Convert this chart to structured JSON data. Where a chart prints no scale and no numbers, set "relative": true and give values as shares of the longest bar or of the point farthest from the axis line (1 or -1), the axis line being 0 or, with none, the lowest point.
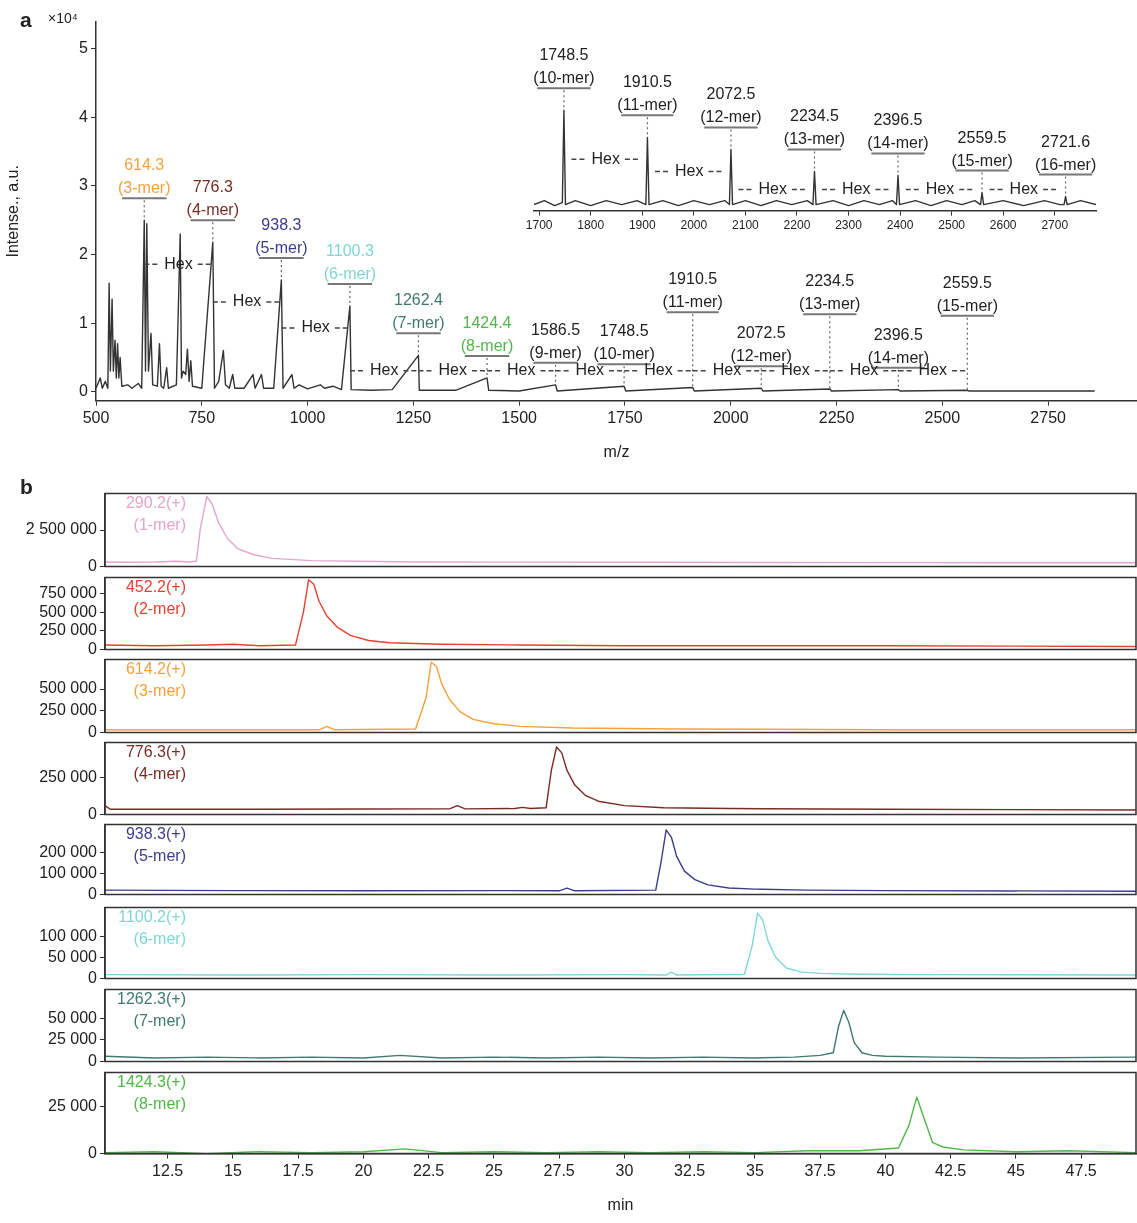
{
  "chart_data": [
    {
      "type": "line",
      "xlabel": "m/z",
      "ylabel": "Intense., a.u.",
      "xlim": [
        500,
        2960
      ],
      "ylim": [
        -0.13,
        5.39
      ],
      "xticks": [
        500,
        750,
        1000,
        1250,
        1500,
        1750,
        2000,
        2250,
        2500,
        2750
      ],
      "yticks": [
        0,
        1,
        2,
        3,
        4,
        5
      ],
      "grid": false,
      "legend": false,
      "marker": "none",
      "series": [
        {
          "color": "#333333",
          "x": [
            500,
            510,
            515,
            522,
            528,
            531,
            534,
            538,
            541,
            545,
            548,
            551,
            554,
            557,
            561,
            575,
            585,
            600,
            608,
            614,
            617,
            620,
            624,
            630,
            634,
            645,
            650,
            654,
            660,
            667,
            671,
            690,
            699,
            702,
            706,
            712,
            716,
            720,
            724,
            728,
            750,
            776,
            780,
            790,
            801,
            806,
            815,
            823,
            828,
            850,
            871,
            876,
            891,
            896,
            920,
            938,
            942,
            963,
            968,
            980,
            1000,
            1030,
            1040,
            1060,
            1080,
            1100,
            1103,
            1150,
            1200,
            1262,
            1264,
            1350,
            1424,
            1428,
            1500,
            1586,
            1590,
            1748,
            1752,
            1910,
            1914,
            2072,
            2076,
            2234,
            2238,
            2396,
            2400,
            2559,
            2563,
            2860
          ],
          "values": [
            0.05,
            0.2,
            0.05,
            0.15,
            0.05,
            1.58,
            0.3,
            1.35,
            0.3,
            0.75,
            0.2,
            0.7,
            0.2,
            0.5,
            0.08,
            0.1,
            0.05,
            0.12,
            0.05,
            2.5,
            0.3,
            2.45,
            0.3,
            0.85,
            0.1,
            0.08,
            0.7,
            0.08,
            0.05,
            0.35,
            0.05,
            0.1,
            2.3,
            0.2,
            0.3,
            0.25,
            0.62,
            0.15,
            0.45,
            0.08,
            0.05,
            2.18,
            0.05,
            0.15,
            0.6,
            0.1,
            0.05,
            0.25,
            0.05,
            0.05,
            0.25,
            0.05,
            0.25,
            0.05,
            0.05,
            1.63,
            0.05,
            0.25,
            0.05,
            0.1,
            0.04,
            0.1,
            0.05,
            0.08,
            0.03,
            1.25,
            0.03,
            0.02,
            0.03,
            0.53,
            0.02,
            0.02,
            0.2,
            0.02,
            0.01,
            0.1,
            0.01,
            0.08,
            0.01,
            0.06,
            0.01,
            0.05,
            0.01,
            0.04,
            0.01,
            0.03,
            0.01,
            0.02,
            0.01,
            0.01
          ]
        }
      ],
      "annotations": [
        "a",
        "×10⁴",
        {
          "text": "614.3\n(3-mer)",
          "x": 614,
          "y": 2.5
        },
        {
          "text": "776.3\n(4-mer)",
          "x": 776,
          "y": 2.18
        },
        {
          "text": "938.3\n(5-mer)",
          "x": 938,
          "y": 1.63
        },
        {
          "text": "1100.3\n(6-mer)",
          "x": 1100,
          "y": 1.25
        },
        {
          "text": "1262.4\n(7-mer)",
          "x": 1262,
          "y": 0.53
        },
        {
          "text": "1424.4\n(8-mer)",
          "x": 1424,
          "y": 0.2
        },
        {
          "text": "1586.5\n(9-mer)",
          "x": 1586,
          "y": 0.1
        },
        {
          "text": "1748.5\n(10-mer)",
          "x": 1748,
          "y": 0.08
        },
        {
          "text": "1910.5\n(11-mer)",
          "x": 1910,
          "y": 0.06
        },
        {
          "text": "2072.5\n(12-mer)",
          "x": 2072,
          "y": 0.05
        },
        {
          "text": "2234.5\n(13-mer)",
          "x": 2234,
          "y": 0.04
        },
        {
          "text": "2396.5\n(14-mer)",
          "x": 2396,
          "y": 0.03
        },
        {
          "text": "2559.5\n(15-mer)",
          "x": 2559,
          "y": 0.02
        },
        "Hex",
        "Hex",
        "Hex",
        "Hex",
        "Hex",
        "Hex",
        "Hex",
        "Hex",
        "Hex",
        "Hex",
        "Hex",
        "Hex"
      ]
    },
    {
      "type": "line",
      "relative": true,
      "xlim": [
        1690,
        2780
      ],
      "xticks": [
        1700,
        1800,
        1900,
        2000,
        2100,
        2200,
        2300,
        2400,
        2500,
        2600,
        2700
      ],
      "grid": false,
      "legend": false,
      "marker": "none",
      "series": [
        {
          "color": "#333333",
          "x": [
            1690,
            1710,
            1730,
            1745,
            1748,
            1751,
            1770,
            1800,
            1830,
            1860,
            1890,
            1907,
            1910,
            1913,
            1940,
            1970,
            2000,
            2030,
            2060,
            2069,
            2072,
            2075,
            2100,
            2130,
            2160,
            2190,
            2220,
            2231,
            2234,
            2237,
            2270,
            2300,
            2330,
            2360,
            2385,
            2393,
            2396,
            2399,
            2430,
            2460,
            2490,
            2520,
            2545,
            2556,
            2559,
            2562,
            2600,
            2640,
            2680,
            2710,
            2718,
            2721,
            2724,
            2750,
            2780
          ],
          "values": [
            0.06,
            0.1,
            0.05,
            0.08,
            1,
            0.06,
            0.1,
            0.05,
            0.1,
            0.06,
            0.1,
            0.06,
            0.73,
            0.06,
            0.1,
            0.05,
            0.1,
            0.06,
            0.1,
            0.06,
            0.61,
            0.06,
            0.1,
            0.05,
            0.1,
            0.06,
            0.1,
            0.06,
            0.39,
            0.06,
            0.1,
            0.05,
            0.1,
            0.06,
            0.1,
            0.06,
            0.35,
            0.06,
            0.1,
            0.05,
            0.1,
            0.06,
            0.1,
            0.06,
            0.18,
            0.06,
            0.1,
            0.05,
            0.1,
            0.06,
            0.06,
            0.14,
            0.06,
            0.1,
            0.06
          ]
        }
      ],
      "annotations": [
        {
          "text": "1748.5\n(10-mer)",
          "x": 1748,
          "y": 1
        },
        {
          "text": "1910.5\n(11-mer)",
          "x": 1910,
          "y": 0.73
        },
        {
          "text": "2072.5\n(12-mer)",
          "x": 2072,
          "y": 0.61
        },
        {
          "text": "2234.5\n(13-mer)",
          "x": 2234,
          "y": 0.39
        },
        {
          "text": "2396.5\n(14-mer)",
          "x": 2396,
          "y": 0.35
        },
        {
          "text": "2559.5\n(15-mer)",
          "x": 2559,
          "y": 0.18
        },
        {
          "text": "2721.6\n(16-mer)",
          "x": 2721,
          "y": 0.14
        },
        "Hex",
        "Hex",
        "Hex",
        "Hex",
        "Hex",
        "Hex"
      ]
    },
    {
      "type": "line",
      "xlim": [
        10.1,
        49.6
      ],
      "ylim": [
        0,
        5000000
      ],
      "xticks": [
        12.5,
        15,
        17.5,
        20,
        22.5,
        25,
        27.5,
        30,
        32.5,
        35,
        37.5,
        40,
        42.5,
        45,
        47.5
      ],
      "yticks": [
        0,
        {
          "value": 2500000,
          "label": "2 500 000"
        }
      ],
      "tick_labels": "y",
      "grid": false,
      "legend": false,
      "marker": "none",
      "annotations": [
        "b"
      ],
      "series": [
        {
          "name": "290.2(+)\n(1-mer)",
          "color": "#e6a3cf",
          "x": [
            10.1,
            11,
            12,
            12.8,
            13.3,
            13.6,
            13.75,
            14.0,
            14.2,
            14.45,
            14.8,
            15.2,
            15.8,
            16.5,
            18,
            22,
            30,
            40,
            49.6
          ],
          "values": [
            300000,
            280000,
            300000,
            350000,
            300000,
            350000,
            2600000,
            4800000,
            4300000,
            3000000,
            1900000,
            1200000,
            800000,
            550000,
            400000,
            300000,
            280000,
            260000,
            250000
          ]
        }
      ]
    },
    {
      "type": "line",
      "xlim": [
        10.1,
        49.6
      ],
      "ylim": [
        0,
        970000
      ],
      "xticks": [
        12.5,
        15,
        17.5,
        20,
        22.5,
        25,
        27.5,
        30,
        32.5,
        35,
        37.5,
        40,
        42.5,
        45,
        47.5
      ],
      "yticks": [
        0,
        {
          "value": 250000,
          "label": "250 000"
        },
        {
          "value": 500000,
          "label": "500 000"
        },
        {
          "value": 750000,
          "label": "750 000"
        }
      ],
      "tick_labels": "y",
      "grid": false,
      "legend": false,
      "marker": "none",
      "series": [
        {
          "name": "452.2(+)\n(2-mer)",
          "color": "#e8412f",
          "x": [
            10.1,
            12,
            14,
            15,
            16,
            17.4,
            17.7,
            17.9,
            18.1,
            18.3,
            18.6,
            19.0,
            19.5,
            20.2,
            21,
            23,
            26,
            30,
            40,
            49.6
          ],
          "values": [
            60000,
            50000,
            60000,
            70000,
            50000,
            60000,
            500000,
            940000,
            880000,
            650000,
            450000,
            300000,
            190000,
            120000,
            90000,
            70000,
            60000,
            50000,
            50000,
            40000
          ]
        }
      ]
    },
    {
      "type": "line",
      "xlim": [
        10.1,
        49.6
      ],
      "ylim": [
        0,
        840000
      ],
      "xticks": [
        12.5,
        15,
        17.5,
        20,
        22.5,
        25,
        27.5,
        30,
        32.5,
        35,
        37.5,
        40,
        42.5,
        45,
        47.5
      ],
      "yticks": [
        0,
        {
          "value": 250000,
          "label": "250 000"
        },
        {
          "value": 500000,
          "label": "500 000"
        }
      ],
      "tick_labels": "y",
      "grid": false,
      "legend": false,
      "marker": "none",
      "series": [
        {
          "name": "614.2(+)\n(3-mer)",
          "color": "#f7a03c",
          "x": [
            10.1,
            14,
            18.3,
            18.6,
            18.9,
            22,
            22.4,
            22.6,
            22.8,
            23.0,
            23.3,
            23.7,
            24.2,
            25,
            26,
            28,
            32,
            40,
            49.6
          ],
          "values": [
            30000,
            30000,
            30000,
            70000,
            30000,
            40000,
            400000,
            810000,
            760000,
            560000,
            380000,
            240000,
            150000,
            100000,
            70000,
            50000,
            40000,
            30000,
            30000
          ]
        }
      ]
    },
    {
      "type": "line",
      "xlim": [
        10.1,
        49.6
      ],
      "ylim": [
        0,
        490000
      ],
      "xticks": [
        12.5,
        15,
        17.5,
        20,
        22.5,
        25,
        27.5,
        30,
        32.5,
        35,
        37.5,
        40,
        42.5,
        45,
        47.5
      ],
      "yticks": [
        0,
        {
          "value": 250000,
          "label": "250 000"
        }
      ],
      "tick_labels": "y",
      "grid": false,
      "legend": false,
      "marker": "none",
      "series": [
        {
          "name": "776.3(+)\n(4-mer)",
          "color": "#7a2b23",
          "x": [
            10.1,
            10.3,
            15,
            20,
            23.3,
            23.6,
            23.9,
            25.8,
            26.1,
            26.4,
            27.0,
            27.2,
            27.4,
            27.6,
            27.8,
            28.1,
            28.5,
            29,
            30,
            31.5,
            34,
            40,
            49.6
          ],
          "values": [
            60000,
            35000,
            35000,
            37000,
            38000,
            60000,
            38000,
            40000,
            48000,
            40000,
            45000,
            300000,
            460000,
            420000,
            300000,
            200000,
            130000,
            90000,
            60000,
            45000,
            40000,
            35000,
            30000
          ]
        }
      ]
    },
    {
      "type": "line",
      "xlim": [
        10.1,
        49.6
      ],
      "ylim": [
        0,
        330000
      ],
      "xticks": [
        12.5,
        15,
        17.5,
        20,
        22.5,
        25,
        27.5,
        30,
        32.5,
        35,
        37.5,
        40,
        42.5,
        45,
        47.5
      ],
      "yticks": [
        0,
        {
          "value": 100000,
          "label": "100 000"
        },
        {
          "value": 200000,
          "label": "200 000"
        }
      ],
      "tick_labels": "y",
      "grid": false,
      "legend": false,
      "marker": "none",
      "series": [
        {
          "name": "938.3(+)\n(5-mer)",
          "color": "#3d3d8f",
          "x": [
            10.1,
            15,
            20,
            25,
            27.5,
            27.8,
            28.1,
            31.2,
            31.4,
            31.6,
            31.8,
            32.0,
            32.3,
            32.7,
            33.2,
            34,
            35,
            37,
            40,
            49.6
          ],
          "values": [
            20000,
            18000,
            17000,
            18000,
            17000,
            30000,
            17000,
            20000,
            150000,
            305000,
            270000,
            180000,
            110000,
            70000,
            45000,
            30000,
            25000,
            20000,
            18000,
            15000
          ]
        }
      ]
    },
    {
      "type": "line",
      "xlim": [
        10.1,
        49.6
      ],
      "ylim": [
        0,
        170000
      ],
      "xticks": [
        12.5,
        15,
        17.5,
        20,
        22.5,
        25,
        27.5,
        30,
        32.5,
        35,
        37.5,
        40,
        42.5,
        45,
        47.5
      ],
      "yticks": [
        0,
        {
          "value": 50000,
          "label": "50 000"
        },
        {
          "value": 100000,
          "label": "100 000"
        }
      ],
      "tick_labels": "y",
      "grid": false,
      "legend": false,
      "marker": "none",
      "series": [
        {
          "name": "1100.2(+)\n(6-mer)",
          "color": "#7ed6d6",
          "x": [
            10.1,
            15,
            20,
            25,
            30,
            31.6,
            31.8,
            32,
            34.6,
            34.9,
            35.1,
            35.3,
            35.5,
            35.8,
            36.2,
            36.8,
            37.5,
            39,
            42,
            49.6
          ],
          "values": [
            9000,
            8000,
            9000,
            8000,
            9000,
            8000,
            15000,
            8000,
            10000,
            80000,
            157000,
            140000,
            90000,
            50000,
            25000,
            15000,
            12000,
            10000,
            9000,
            8000
          ]
        }
      ]
    },
    {
      "type": "line",
      "xlim": [
        10.1,
        49.6
      ],
      "ylim": [
        0,
        83000
      ],
      "xticks": [
        12.5,
        15,
        17.5,
        20,
        22.5,
        25,
        27.5,
        30,
        32.5,
        35,
        37.5,
        40,
        42.5,
        45,
        47.5
      ],
      "yticks": [
        0,
        {
          "value": 25000,
          "label": "25 000"
        },
        {
          "value": 50000,
          "label": "50 000"
        }
      ],
      "tick_labels": "y",
      "grid": false,
      "legend": false,
      "marker": "none",
      "series": [
        {
          "name": "1262.3(+)\n(7-mer)",
          "color": "#3f7a6f",
          "x": [
            10.1,
            12,
            14,
            16,
            18,
            20,
            21.4,
            23,
            25,
            27,
            29,
            31,
            33,
            35,
            36.5,
            37.5,
            38.0,
            38.2,
            38.4,
            38.6,
            38.8,
            39.1,
            39.5,
            40,
            42,
            45,
            49.6
          ],
          "values": [
            6000,
            4000,
            5000,
            4000,
            5000,
            4000,
            7000,
            4000,
            5000,
            4000,
            5000,
            4000,
            5000,
            4000,
            5000,
            7000,
            10000,
            40000,
            59000,
            45000,
            22000,
            10000,
            7000,
            6000,
            5000,
            4000,
            5000
          ]
        }
      ]
    },
    {
      "type": "line",
      "xlabel": "min",
      "xlim": [
        10.1,
        49.6
      ],
      "ylim": [
        0,
        43000
      ],
      "xticks": [
        12.5,
        15,
        17.5,
        20,
        22.5,
        25,
        27.5,
        30,
        32.5,
        35,
        37.5,
        40,
        42.5,
        45,
        47.5
      ],
      "yticks": [
        0,
        {
          "value": 25000,
          "label": "25 000"
        }
      ],
      "grid": false,
      "legend": false,
      "marker": "none",
      "series": [
        {
          "name": "1424.3(+)\n(8-mer)",
          "color": "#4fb848",
          "x": [
            10.1,
            12,
            14,
            16,
            18,
            20,
            21.6,
            23,
            25,
            27,
            29,
            31,
            33,
            35,
            37,
            39,
            40.5,
            40.9,
            41.2,
            41.5,
            41.8,
            42.2,
            43,
            45,
            47,
            49.6
          ],
          "values": [
            500,
            1000,
            0,
            1000,
            500,
            1000,
            2500,
            500,
            1000,
            500,
            1000,
            500,
            1000,
            500,
            1500,
            1500,
            3000,
            15000,
            30000,
            18000,
            6000,
            3500,
            2000,
            1000,
            1500,
            500
          ]
        }
      ]
    }
  ]
}
